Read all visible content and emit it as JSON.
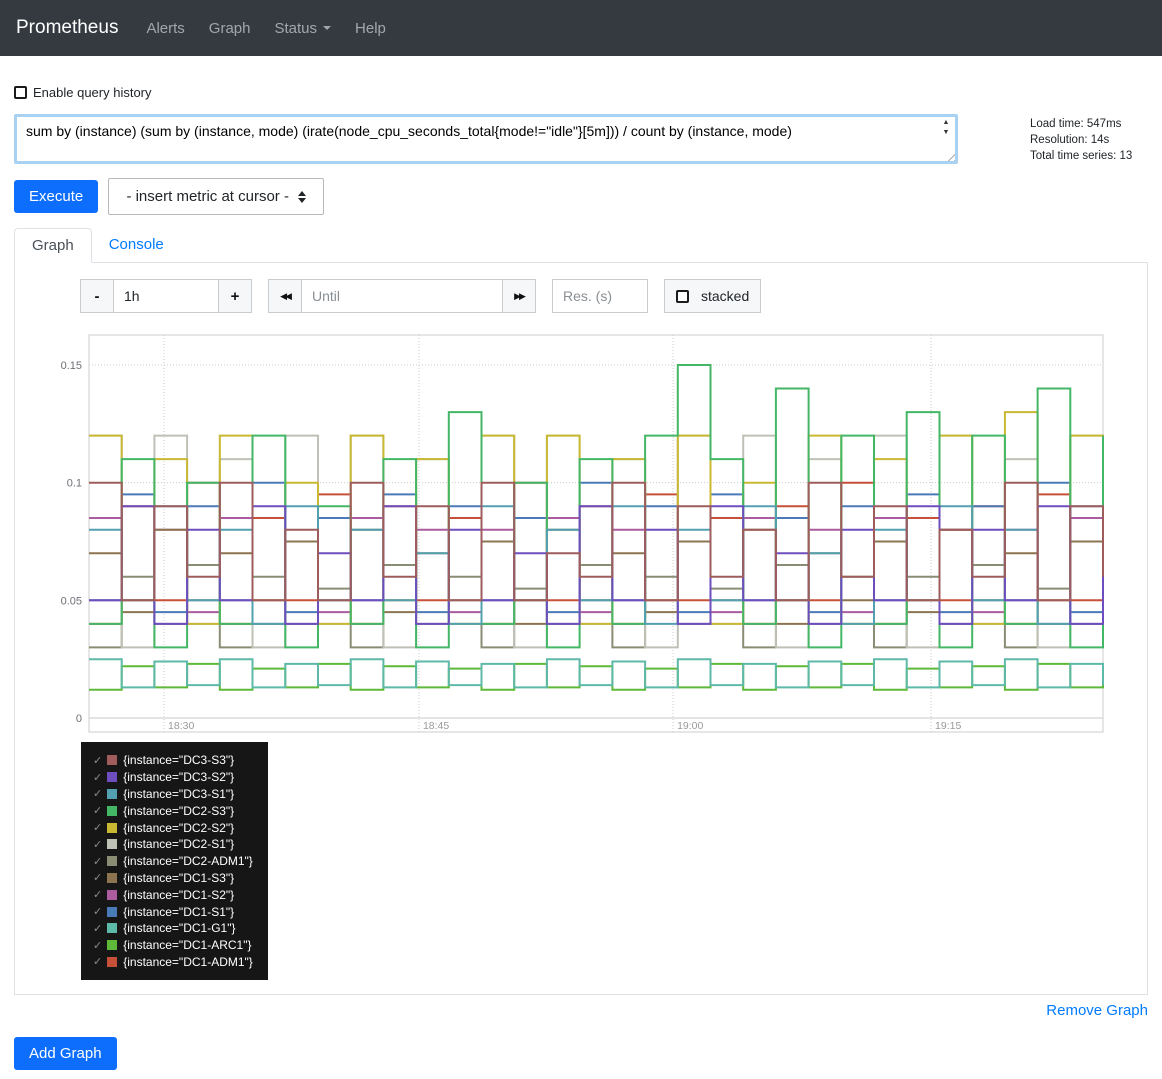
{
  "navbar": {
    "brand": "Prometheus",
    "items": [
      {
        "label": "Alerts",
        "has_caret": false
      },
      {
        "label": "Graph",
        "has_caret": false
      },
      {
        "label": "Status",
        "has_caret": true
      },
      {
        "label": "Help",
        "has_caret": false
      }
    ]
  },
  "query": {
    "history_label": "Enable query history",
    "expression": "sum by (instance) (sum by (instance, mode) (irate(node_cpu_seconds_total{mode!=\"idle\"}[5m])) / count by (instance, mode)",
    "execute_label": "Execute",
    "metric_select": "- insert metric at cursor -",
    "stats": {
      "load_time": "Load time: 547ms",
      "resolution": "Resolution: 14s",
      "total_series": "Total time series: 13"
    }
  },
  "tabs": [
    {
      "label": "Graph",
      "active": true
    },
    {
      "label": "Console",
      "active": false
    }
  ],
  "controls": {
    "range_minus": "-",
    "range_value": "1h",
    "range_plus": "+",
    "until_placeholder": "Until",
    "res_placeholder": "Res. (s)",
    "stacked_label": "stacked"
  },
  "icons": {
    "rewind": "◀◀",
    "forward": "▶▶",
    "check": "✓",
    "caret_down": "caret-down",
    "select_updown": "up-down-arrows"
  },
  "footer": {
    "remove_graph": "Remove Graph",
    "add_graph": "Add Graph"
  },
  "chart_data": {
    "type": "line",
    "step": true,
    "title": "",
    "xlabel": "",
    "ylabel": "",
    "grid": "dotted",
    "legend_position": "bottom-left",
    "ylim": [
      0,
      0.163
    ],
    "yticks": [
      {
        "label": "0",
        "v": 0
      },
      {
        "label": "0.05",
        "v": 0.05
      },
      {
        "label": "0.1",
        "v": 0.1
      },
      {
        "label": "0.15",
        "v": 0.15
      }
    ],
    "xticks": [
      {
        "label": "18:30",
        "f": 0.074
      },
      {
        "label": "18:45",
        "f": 0.3254
      },
      {
        "label": "19:00",
        "f": 0.576
      },
      {
        "label": "19:15",
        "f": 0.8304
      }
    ],
    "x_span_minutes": 60,
    "series": [
      {
        "name": "{instance=\"DC3-S3\"}",
        "color": "#9e5c5c",
        "values": [
          0.1,
          0.05,
          0.09,
          0.06,
          0.1,
          0.05,
          0.08,
          0.05,
          0.1,
          0.06,
          0.09,
          0.05,
          0.1,
          0.05,
          0.07,
          0.06,
          0.1,
          0.05,
          0.09,
          0.06,
          0.08,
          0.05,
          0.1,
          0.06,
          0.09,
          0.05,
          0.08,
          0.06,
          0.1,
          0.05,
          0.09,
          0.06
        ]
      },
      {
        "name": "{instance=\"DC3-S2\"}",
        "color": "#6e4ebe",
        "values": [
          0.05,
          0.09,
          0.04,
          0.08,
          0.05,
          0.09,
          0.04,
          0.07,
          0.05,
          0.09,
          0.04,
          0.08,
          0.05,
          0.07,
          0.04,
          0.09,
          0.05,
          0.08,
          0.04,
          0.09,
          0.05,
          0.07,
          0.04,
          0.08,
          0.05,
          0.09,
          0.04,
          0.08,
          0.05,
          0.09,
          0.04,
          0.08
        ]
      },
      {
        "name": "{instance=\"DC3-S1\"}",
        "color": "#52a0b0",
        "values": [
          0.08,
          0.05,
          0.09,
          0.05,
          0.08,
          0.04,
          0.09,
          0.05,
          0.08,
          0.05,
          0.07,
          0.04,
          0.09,
          0.05,
          0.08,
          0.05,
          0.09,
          0.04,
          0.08,
          0.05,
          0.09,
          0.05,
          0.07,
          0.04,
          0.08,
          0.05,
          0.09,
          0.05,
          0.08,
          0.04,
          0.09,
          0.05
        ]
      },
      {
        "name": "{instance=\"DC2-S3\"}",
        "color": "#44b766",
        "values": [
          0.04,
          0.11,
          0.03,
          0.1,
          0.04,
          0.12,
          0.03,
          0.09,
          0.04,
          0.11,
          0.03,
          0.13,
          0.04,
          0.1,
          0.03,
          0.11,
          0.04,
          0.12,
          0.15,
          0.11,
          0.04,
          0.14,
          0.03,
          0.12,
          0.04,
          0.13,
          0.03,
          0.12,
          0.04,
          0.14,
          0.03,
          0.12
        ]
      },
      {
        "name": "{instance=\"DC2-S2\"}",
        "color": "#c9b832",
        "values": [
          0.12,
          0.05,
          0.11,
          0.04,
          0.12,
          0.05,
          0.1,
          0.04,
          0.12,
          0.05,
          0.11,
          0.04,
          0.12,
          0.05,
          0.12,
          0.04,
          0.11,
          0.05,
          0.12,
          0.04,
          0.1,
          0.05,
          0.12,
          0.04,
          0.11,
          0.05,
          0.12,
          0.04,
          0.13,
          0.05,
          0.12,
          0.04
        ]
      },
      {
        "name": "{instance=\"DC2-S1\"}",
        "color": "#bec2b6",
        "values": [
          0.12,
          0.03,
          0.12,
          0.04,
          0.11,
          0.03,
          0.12,
          0.04,
          0.12,
          0.03,
          0.11,
          0.04,
          0.12,
          0.03,
          0.12,
          0.04,
          0.11,
          0.03,
          0.12,
          0.04,
          0.12,
          0.03,
          0.11,
          0.04,
          0.12,
          0.03,
          0.12,
          0.04,
          0.11,
          0.03,
          0.12,
          0.04
        ]
      },
      {
        "name": "{instance=\"DC2-ADM1\"}",
        "color": "#8a8c74",
        "values": [
          0.03,
          0.06,
          0.04,
          0.065,
          0.03,
          0.06,
          0.04,
          0.055,
          0.03,
          0.065,
          0.04,
          0.06,
          0.03,
          0.055,
          0.04,
          0.065,
          0.03,
          0.06,
          0.04,
          0.055,
          0.03,
          0.065,
          0.04,
          0.06,
          0.03,
          0.06,
          0.04,
          0.065,
          0.03,
          0.055,
          0.04,
          0.06
        ]
      },
      {
        "name": "{instance=\"DC1-S3\"}",
        "color": "#8d7450",
        "values": [
          0.07,
          0.045,
          0.08,
          0.05,
          0.07,
          0.04,
          0.075,
          0.05,
          0.08,
          0.045,
          0.07,
          0.05,
          0.075,
          0.04,
          0.08,
          0.05,
          0.07,
          0.045,
          0.075,
          0.05,
          0.08,
          0.04,
          0.07,
          0.05,
          0.075,
          0.045,
          0.08,
          0.05,
          0.07,
          0.04,
          0.075,
          0.05
        ]
      },
      {
        "name": "{instance=\"DC1-S2\"}",
        "color": "#aa5c9e",
        "values": [
          0.085,
          0.05,
          0.08,
          0.045,
          0.085,
          0.05,
          0.075,
          0.045,
          0.085,
          0.05,
          0.08,
          0.045,
          0.08,
          0.05,
          0.085,
          0.045,
          0.08,
          0.05,
          0.075,
          0.045,
          0.085,
          0.05,
          0.08,
          0.045,
          0.085,
          0.05,
          0.08,
          0.045,
          0.08,
          0.05,
          0.085,
          0.045
        ]
      },
      {
        "name": "{instance=\"DC1-S1\"}",
        "color": "#4a7ab8",
        "values": [
          0.05,
          0.095,
          0.045,
          0.09,
          0.05,
          0.1,
          0.045,
          0.085,
          0.05,
          0.095,
          0.045,
          0.09,
          0.05,
          0.085,
          0.045,
          0.1,
          0.05,
          0.09,
          0.045,
          0.095,
          0.05,
          0.085,
          0.045,
          0.09,
          0.05,
          0.095,
          0.045,
          0.09,
          0.05,
          0.1,
          0.045,
          0.09
        ]
      },
      {
        "name": "{instance=\"DC1-G1\"}",
        "color": "#5eb9a8",
        "values": [
          0.025,
          0.013,
          0.024,
          0.014,
          0.025,
          0.013,
          0.023,
          0.014,
          0.025,
          0.013,
          0.024,
          0.014,
          0.023,
          0.013,
          0.025,
          0.014,
          0.024,
          0.013,
          0.025,
          0.014,
          0.023,
          0.013,
          0.024,
          0.014,
          0.025,
          0.013,
          0.024,
          0.014,
          0.025,
          0.013,
          0.023,
          0.014
        ]
      },
      {
        "name": "{instance=\"DC1-ARC1\"}",
        "color": "#5eb938",
        "values": [
          0.012,
          0.022,
          0.013,
          0.023,
          0.012,
          0.021,
          0.013,
          0.023,
          0.012,
          0.022,
          0.013,
          0.021,
          0.012,
          0.023,
          0.013,
          0.022,
          0.012,
          0.021,
          0.013,
          0.023,
          0.012,
          0.022,
          0.013,
          0.023,
          0.012,
          0.021,
          0.013,
          0.022,
          0.012,
          0.023,
          0.013,
          0.022
        ]
      },
      {
        "name": "{instance=\"DC1-ADM1\"}",
        "color": "#c65038",
        "values": [
          0.04,
          0.09,
          0.05,
          0.1,
          0.04,
          0.085,
          0.05,
          0.095,
          0.04,
          0.09,
          0.05,
          0.085,
          0.04,
          0.1,
          0.05,
          0.09,
          0.04,
          0.095,
          0.05,
          0.085,
          0.04,
          0.09,
          0.05,
          0.1,
          0.04,
          0.085,
          0.05,
          0.09,
          0.04,
          0.095,
          0.05,
          0.09
        ]
      }
    ]
  }
}
